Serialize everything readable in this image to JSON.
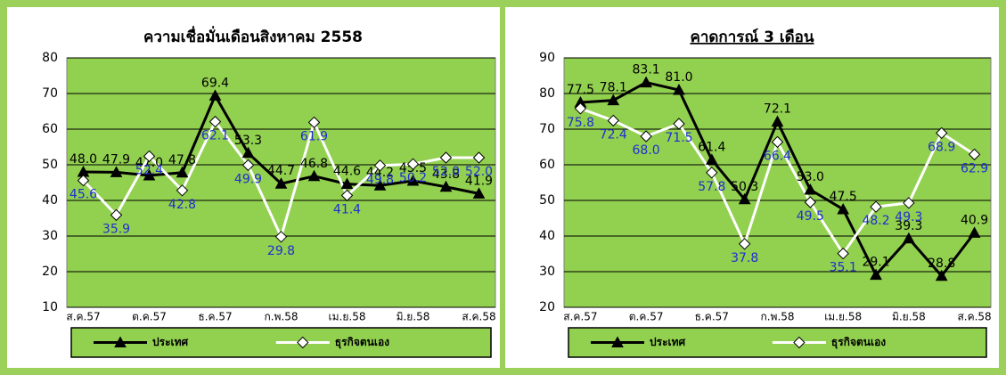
{
  "chart_data": [
    {
      "type": "line",
      "title": "ความเชื่อมั่นเดือนสิงหาคม 2558",
      "title_underline": false,
      "categories": [
        "ส.ค.57",
        null,
        "ต.ค.57",
        null,
        "ธ.ค.57",
        null,
        "ก.พ.58",
        null,
        "เม.ย.58",
        null,
        "มิ.ย.58",
        null,
        "ส.ค.58"
      ],
      "series": [
        {
          "name": "ประเทศ",
          "color": "#000000",
          "marker": "triangle",
          "label_color": "#000000",
          "values": [
            48.0,
            47.9,
            47.0,
            47.8,
            69.4,
            53.3,
            44.7,
            46.8,
            44.6,
            44.2,
            45.5,
            43.8,
            41.9
          ],
          "value_labels": [
            "48.0",
            "47.9",
            "47.0",
            "47.8",
            "69.4",
            "53.3",
            "44.7",
            "46.8",
            "44.6",
            "44.2",
            "45.5",
            "43.8",
            "41.9"
          ]
        },
        {
          "name": "ธุรกิจตนเอง",
          "color": "#ffffff",
          "marker": "diamond",
          "label_color": "#1f2fd0",
          "values": [
            45.6,
            35.9,
            52.4,
            42.8,
            62.1,
            49.9,
            29.8,
            61.9,
            41.4,
            49.8,
            50.2,
            52.0,
            52.0
          ],
          "value_labels": [
            "45.6",
            "35.9",
            "52.4",
            "42.8",
            "62.1",
            "49.9",
            "29.8",
            "61.9",
            "41.4",
            "49.8",
            "50.2",
            "52.0",
            "52.0"
          ]
        }
      ],
      "ylim": [
        10,
        80
      ],
      "yticks": [
        10,
        20,
        30,
        40,
        50,
        60,
        70,
        80
      ],
      "grid": true,
      "legend": "bottom"
    },
    {
      "type": "line",
      "title": "คาดการณ์ 3 เดือน",
      "title_underline": true,
      "categories": [
        "ส.ค.57",
        null,
        "ต.ค.57",
        null,
        "ธ.ค.57",
        null,
        "ก.พ.58",
        null,
        "เม.ย.58",
        null,
        "มิ.ย.58",
        null,
        "ส.ค.58"
      ],
      "series": [
        {
          "name": "ประเทศ",
          "color": "#000000",
          "marker": "triangle",
          "label_color": "#000000",
          "values": [
            77.5,
            78.1,
            83.1,
            81.0,
            61.4,
            50.3,
            72.1,
            53.0,
            47.5,
            29.1,
            39.3,
            28.8,
            40.9
          ],
          "value_labels": [
            "77.5",
            "78.1",
            "83.1",
            "81.0",
            "61.4",
            "50.3",
            "72.1",
            "53.0",
            "47.5",
            "29.1",
            "39.3",
            "28.8",
            "40.9"
          ]
        },
        {
          "name": "ธุรกิจตนเอง",
          "color": "#ffffff",
          "marker": "diamond",
          "label_color": "#1f2fd0",
          "values": [
            75.8,
            72.4,
            68.0,
            71.5,
            57.8,
            37.8,
            66.4,
            49.5,
            35.1,
            48.2,
            49.3,
            68.9,
            62.9
          ],
          "value_labels": [
            "75.8",
            "72.4",
            "68.0",
            "71.5",
            "57.8",
            "37.8",
            "66.4",
            "49.5",
            "35.1",
            "48.2",
            "49.3",
            "68.9",
            "62.9"
          ]
        }
      ],
      "ylim": [
        20,
        90
      ],
      "yticks": [
        20,
        30,
        40,
        50,
        60,
        70,
        80,
        90
      ],
      "grid": true,
      "legend": "bottom"
    }
  ]
}
